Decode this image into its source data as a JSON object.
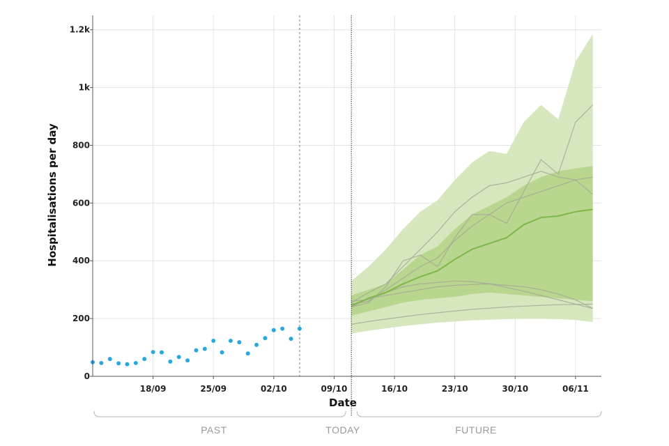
{
  "chart_data": {
    "type": "line",
    "xlabel": "Date",
    "ylabel": "Hospitalisations per day",
    "ylim": [
      0,
      1250
    ],
    "xlim": [
      "2020-09-11",
      "2020-11-09"
    ],
    "x_ticks": [
      "18/09",
      "25/09",
      "02/10",
      "09/10",
      "16/10",
      "23/10",
      "30/10",
      "06/11"
    ],
    "y_ticks": [
      {
        "value": 0,
        "label": "0"
      },
      {
        "value": 200,
        "label": "200"
      },
      {
        "value": 400,
        "label": "400"
      },
      {
        "value": 600,
        "label": "600"
      },
      {
        "value": 800,
        "label": "800"
      },
      {
        "value": 1000,
        "label": "1k"
      },
      {
        "value": 1200,
        "label": "1.2k"
      }
    ],
    "grid": true,
    "data_end_date": "2020-10-05",
    "today": "2020-10-11",
    "period_labels": {
      "past": "PAST",
      "today": "TODAY",
      "future": "FUTURE"
    },
    "colors": {
      "observed": "#29a8e0",
      "outer_band": "#d6e6bd",
      "inner_band": "#b8d68e",
      "median_line": "#7fb648",
      "sample_lines": "#a4a896",
      "today_line": "#333333",
      "data_end_line": "#777777"
    },
    "observed": {
      "name": "",
      "x": [
        "2020-09-11",
        "2020-09-12",
        "2020-09-13",
        "2020-09-14",
        "2020-09-15",
        "2020-09-16",
        "2020-09-17",
        "2020-09-18",
        "2020-09-19",
        "2020-09-20",
        "2020-09-21",
        "2020-09-22",
        "2020-09-23",
        "2020-09-24",
        "2020-09-25",
        "2020-09-26",
        "2020-09-27",
        "2020-09-28",
        "2020-09-29",
        "2020-09-30",
        "2020-10-01",
        "2020-10-02",
        "2020-10-03",
        "2020-10-04",
        "2020-10-05"
      ],
      "y": [
        49,
        46,
        60,
        45,
        42,
        46,
        60,
        84,
        83,
        51,
        67,
        55,
        90,
        95,
        123,
        83,
        123,
        118,
        79,
        109,
        132,
        160,
        165,
        130,
        165
      ]
    },
    "forecast": {
      "x": [
        "2020-10-11",
        "2020-10-13",
        "2020-10-15",
        "2020-10-17",
        "2020-10-19",
        "2020-10-21",
        "2020-10-23",
        "2020-10-25",
        "2020-10-27",
        "2020-10-29",
        "2020-10-31",
        "2020-11-02",
        "2020-11-04",
        "2020-11-06",
        "2020-11-08"
      ],
      "outer_upper": [
        330,
        380,
        440,
        510,
        570,
        610,
        680,
        740,
        780,
        770,
        880,
        940,
        890,
        1090,
        1185
      ],
      "outer_lower": [
        148,
        158,
        166,
        174,
        180,
        186,
        190,
        194,
        196,
        198,
        199,
        199,
        198,
        195,
        188
      ],
      "inner_upper": [
        280,
        300,
        320,
        370,
        420,
        450,
        510,
        560,
        590,
        620,
        660,
        690,
        710,
        720,
        728
      ],
      "inner_lower": [
        210,
        225,
        240,
        255,
        265,
        270,
        275,
        285,
        290,
        285,
        280,
        275,
        270,
        265,
        260
      ],
      "median": [
        245,
        270,
        290,
        320,
        345,
        365,
        405,
        440,
        460,
        480,
        525,
        550,
        555,
        570,
        578
      ],
      "samples": [
        [
          255,
          290,
          320,
          380,
          440,
          500,
          570,
          620,
          660,
          670,
          690,
          710,
          690,
          680,
          630
        ],
        [
          240,
          270,
          280,
          290,
          300,
          310,
          315,
          318,
          320,
          315,
          310,
          300,
          285,
          265,
          235
        ],
        [
          180,
          190,
          198,
          206,
          214,
          220,
          226,
          232,
          236,
          240,
          243,
          246,
          248,
          249,
          250
        ],
        [
          250,
          260,
          300,
          340,
          380,
          410,
          470,
          520,
          560,
          600,
          620,
          640,
          660,
          680,
          690
        ],
        [
          260,
          265,
          290,
          310,
          320,
          325,
          330,
          328,
          320,
          308,
          295,
          280,
          265,
          250,
          235
        ],
        [
          240,
          255,
          310,
          400,
          420,
          380,
          480,
          560,
          560,
          530,
          640,
          750,
          700,
          880,
          940
        ]
      ]
    }
  }
}
